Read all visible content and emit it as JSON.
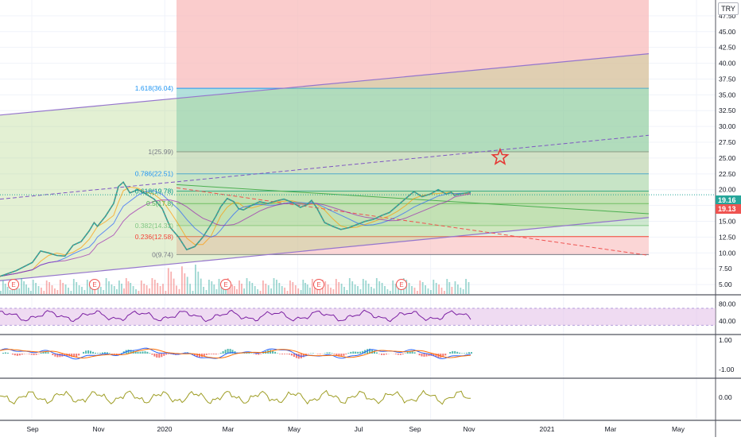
{
  "chart_data": {
    "type": "line",
    "currency": "TRY",
    "x_ticks": [
      "Sep",
      "Nov",
      "2020",
      "Mar",
      "May",
      "Jul",
      "Sep",
      "Nov",
      "2021",
      "Mar",
      "May"
    ],
    "price_axis": {
      "range": [
        3.5,
        50
      ],
      "ticks": [
        5,
        7.5,
        10,
        12.5,
        15,
        17.5,
        20,
        22.5,
        25,
        27.5,
        30,
        32.5,
        35,
        37.5,
        40,
        42.5,
        45,
        47.5
      ],
      "tick_labels": [
        "5.00",
        "7.50",
        "10.00",
        "12.50",
        "15.00",
        "17.50",
        "20.00",
        "22.50",
        "25.00",
        "27.50",
        "30.00",
        "32.50",
        "35.00",
        "37.50",
        "40.00",
        "42.50",
        "45.00",
        "47.50"
      ]
    },
    "last_price": "19.16",
    "close_price": "19.13",
    "price_series": {
      "x": [
        0,
        1,
        2,
        2.5,
        3,
        3.5,
        4,
        4.5,
        5,
        5.5,
        5.8,
        6,
        6.5,
        7,
        7.3,
        7.6,
        8,
        8.5,
        9,
        9.5,
        10,
        10.5,
        11,
        11.5,
        12,
        12.5,
        13,
        13.3,
        13.6,
        14,
        14.4,
        14.7,
        15,
        15.5,
        16,
        16.5,
        17,
        17.5,
        18,
        18.5,
        18.9,
        19.2,
        19.5,
        20,
        20.5,
        21,
        21.5,
        22,
        22.5,
        23,
        23.5,
        24,
        24.5,
        25,
        25.5,
        26,
        26.5,
        27,
        27.5,
        27.8,
        28,
        28.5,
        29
      ],
      "y": [
        6.3,
        7.2,
        8.5,
        10.3,
        10.0,
        9.6,
        9.5,
        11.2,
        11.8,
        13.5,
        14.8,
        14.2,
        15.8,
        17.8,
        20.5,
        21.2,
        19.5,
        20.0,
        19.3,
        18.5,
        17.0,
        14.0,
        12.5,
        10.5,
        11.0,
        12.5,
        14.5,
        15.8,
        17.3,
        18.6,
        18.1,
        17.0,
        16.8,
        17.5,
        18.1,
        17.8,
        18.2,
        18.5,
        18.0,
        17.2,
        17.6,
        18.3,
        17.2,
        14.8,
        14.2,
        13.7,
        14.0,
        14.5,
        15.0,
        15.3,
        15.9,
        16.4,
        17.5,
        18.6,
        19.7,
        18.9,
        19.3,
        20.0,
        19.3,
        19.6,
        19.1,
        19.4,
        19.6
      ]
    },
    "fib_levels": [
      {
        "label": "0(9.74)",
        "value": 9.74
      },
      {
        "label": "0.236(12.58)",
        "value": 12.58
      },
      {
        "label": "0.382(14.33)",
        "value": 14.33
      },
      {
        "label": "0.5(17.8)",
        "value": 17.8
      },
      {
        "label": "0.618(19.78)",
        "value": 19.78
      },
      {
        "label": "0.786(22.51)",
        "value": 22.51
      },
      {
        "label": "1(25.99)",
        "value": 25.99
      },
      {
        "label": "1.618(36.04)",
        "value": 36.04
      }
    ],
    "earnings_markers": [
      "E",
      "E",
      "E",
      "E",
      "E"
    ],
    "rsi": {
      "ticks": [
        "80.00",
        "40.00"
      ],
      "band": [
        30,
        70
      ]
    },
    "macd": {
      "ticks": [
        "1.00",
        "-1.00"
      ]
    },
    "oscillator": {
      "ticks": [
        "0.00"
      ]
    },
    "colors": {
      "up": "#26a69a",
      "down": "#ef5350",
      "rsi": "#7b1fa2",
      "band": "#e1bee7",
      "oscillator": "#9e9d24",
      "fib": "#2196f3",
      "channel": "#9575cd",
      "zone_red": "#f8bbbb",
      "zone_green": "#a5d6a7",
      "zone_blue": "#80cbc4"
    },
    "annotation_shape": "star-icon"
  }
}
